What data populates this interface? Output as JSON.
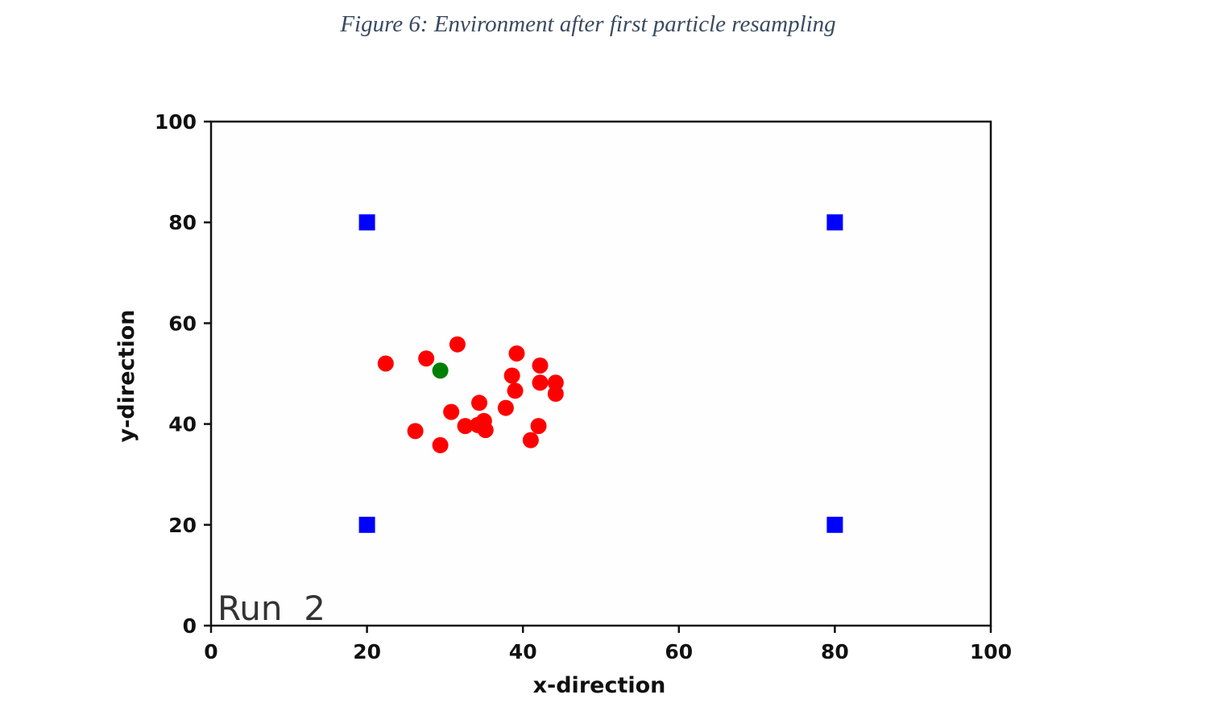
{
  "figure": {
    "caption": "Figure 6: Environment after first particle resampling"
  },
  "chart_data": {
    "type": "scatter",
    "title": "",
    "xlabel": "x-direction",
    "ylabel": "y-direction",
    "xlim": [
      0,
      100
    ],
    "ylim": [
      0,
      100
    ],
    "xticks": [
      0,
      20,
      40,
      60,
      80,
      100
    ],
    "yticks": [
      0,
      20,
      40,
      60,
      80,
      100
    ],
    "grid": false,
    "annotation": "Run  2",
    "series": [
      {
        "marker": "square",
        "color": "#0000ff",
        "points": [
          [
            20,
            80
          ],
          [
            80,
            80
          ],
          [
            20,
            20
          ],
          [
            80,
            20
          ]
        ]
      },
      {
        "marker": "circle",
        "color": "#ff0000",
        "points": [
          [
            22.4,
            52.0
          ],
          [
            27.6,
            53.0
          ],
          [
            31.6,
            55.8
          ],
          [
            39.2,
            54.0
          ],
          [
            42.2,
            51.6
          ],
          [
            38.6,
            49.6
          ],
          [
            42.2,
            48.2
          ],
          [
            44.2,
            48.2
          ],
          [
            44.2,
            46.0
          ],
          [
            39.0,
            46.6
          ],
          [
            34.4,
            44.2
          ],
          [
            37.8,
            43.2
          ],
          [
            30.8,
            42.4
          ],
          [
            35.0,
            40.6
          ],
          [
            34.2,
            39.8
          ],
          [
            32.6,
            39.6
          ],
          [
            35.2,
            38.8
          ],
          [
            42.0,
            39.6
          ],
          [
            26.2,
            38.6
          ],
          [
            41.0,
            36.8
          ],
          [
            29.4,
            35.8
          ]
        ]
      },
      {
        "marker": "circle",
        "color": "#008000",
        "points": [
          [
            29.4,
            50.6
          ]
        ]
      }
    ]
  }
}
